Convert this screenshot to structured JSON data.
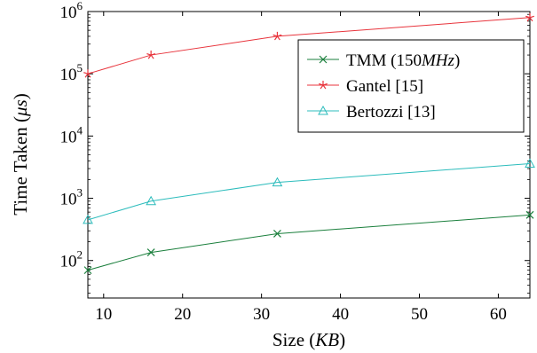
{
  "chart_data": {
    "type": "line",
    "xlabel": "Size (KB)",
    "ylabel": "Time Taken (μs)",
    "xscale": "linear",
    "yscale": "log",
    "xlim": [
      8,
      64
    ],
    "ylim": [
      25,
      1000000
    ],
    "xticks": [
      10,
      20,
      30,
      40,
      50,
      60
    ],
    "yticks": [
      {
        "value": 100,
        "base": "10",
        "exp": "2"
      },
      {
        "value": 1000,
        "base": "10",
        "exp": "3"
      },
      {
        "value": 10000,
        "base": "10",
        "exp": "4"
      },
      {
        "value": 100000,
        "base": "10",
        "exp": "5"
      },
      {
        "value": 1000000,
        "base": "10",
        "exp": "6"
      }
    ],
    "grid": false,
    "legend_position": "top-right",
    "series": [
      {
        "name": "TMM (150MHz)",
        "color": "#1a7f3c",
        "marker": "x",
        "x": [
          8,
          16,
          32,
          64
        ],
        "y": [
          70,
          135,
          270,
          540
        ]
      },
      {
        "name": "Gantel [15]",
        "color": "#e8343c",
        "marker": "star",
        "x": [
          8,
          16,
          32,
          64
        ],
        "y": [
          100000,
          200000,
          400000,
          800000
        ]
      },
      {
        "name": "Bertozzi [13]",
        "color": "#2cbcbc",
        "marker": "triangle",
        "x": [
          8,
          16,
          32,
          64
        ],
        "y": [
          450,
          900,
          1800,
          3600
        ]
      }
    ]
  }
}
